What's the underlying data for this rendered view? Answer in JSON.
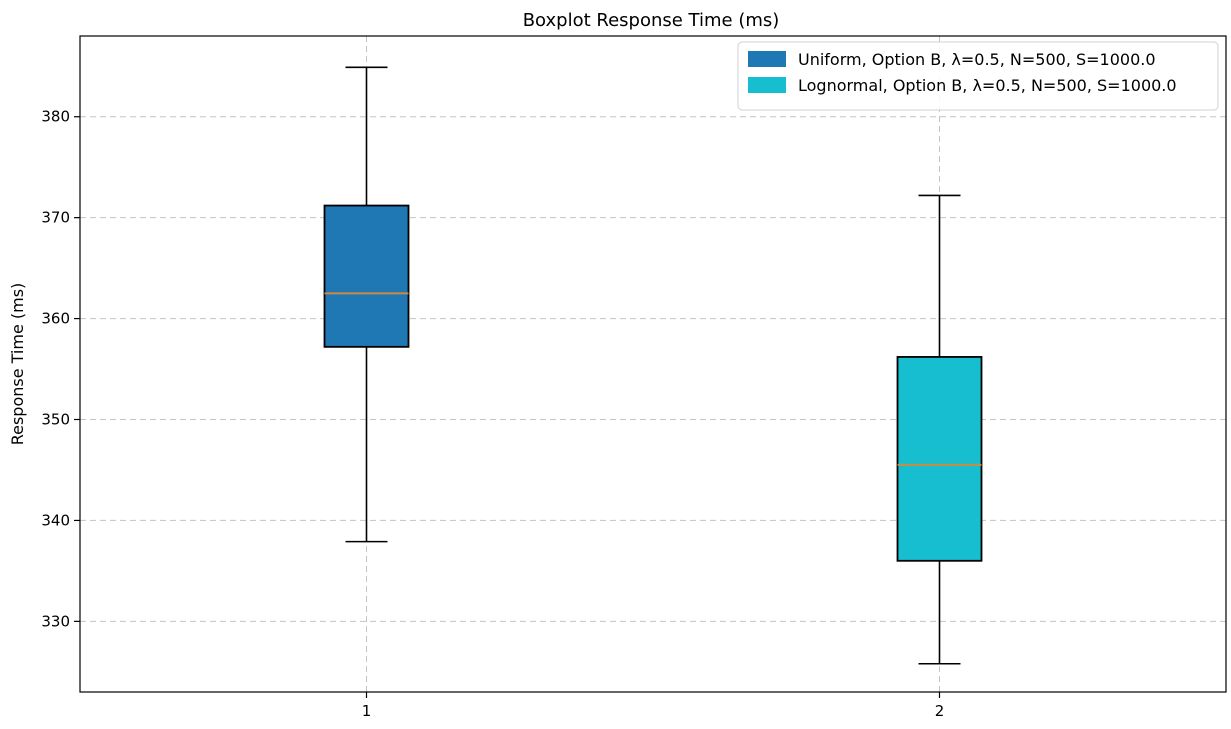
{
  "chart_data": {
    "type": "boxplot",
    "title": "Boxplot Response Time (ms)",
    "xlabel": "",
    "ylabel": "Response Time (ms)",
    "categories": [
      "1",
      "2"
    ],
    "ylim": [
      323,
      388
    ],
    "yticks": [
      330,
      340,
      350,
      360,
      370,
      380
    ],
    "grid": true,
    "legend_position": "top-right",
    "series": [
      {
        "name": "Uniform, Option B, λ=0.5, N=500, S=1000.0",
        "color": "#1f77b4",
        "whisker_low": 337.9,
        "q1": 357.2,
        "median": 362.5,
        "q3": 371.2,
        "whisker_high": 384.9
      },
      {
        "name": "Lognormal, Option B, λ=0.5, N=500, S=1000.0",
        "color": "#17becf",
        "whisker_low": 325.8,
        "q1": 336.0,
        "median": 345.5,
        "q3": 356.2,
        "whisker_high": 372.2
      }
    ],
    "median_color": "#d08a3e"
  }
}
